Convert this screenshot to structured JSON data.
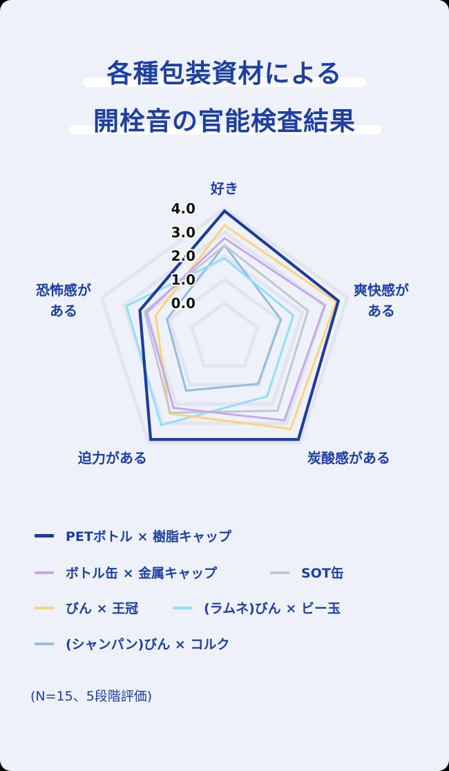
{
  "title": {
    "line1": "各種包装資材による",
    "line2": "開栓音の官能検査結果"
  },
  "chart_data": {
    "type": "radar",
    "title": "各種包装資材による開栓音の官能検査結果",
    "axes": [
      "好き",
      "爽快感がある",
      "炭酸感がある",
      "迫力がある",
      "恐怖感がある"
    ],
    "axis_labels_display": {
      "top": "好き",
      "right_line1": "爽快感が",
      "right_line2": "ある",
      "bottom_right": "炭酸感がある",
      "bottom_left": "迫力がある",
      "left_line1": "恐怖感が",
      "left_line2": "ある"
    },
    "radial_ticks": [
      "0.0",
      "1.0",
      "2.0",
      "3.0",
      "4.0"
    ],
    "range": [
      0,
      4
    ],
    "grid": true,
    "legend_position": "bottom",
    "series": [
      {
        "name": "PETボトル × 樹脂キャップ",
        "color": "#1c3c9e",
        "width": 4,
        "values": [
          3.9,
          3.6,
          3.85,
          3.85,
          2.3
        ]
      },
      {
        "name": "ボトル缶 × 金属キャップ",
        "color": "#c4a8ec",
        "width": 3,
        "values": [
          2.75,
          3.0,
          2.85,
          2.2,
          2.0
        ]
      },
      {
        "name": "SOT缶",
        "color": "#c2c7d0",
        "width": 3,
        "values": [
          2.45,
          2.25,
          2.35,
          2.45,
          2.1
        ]
      },
      {
        "name": "びん × 王冠",
        "color": "#ffd27a",
        "width": 3,
        "values": [
          3.3,
          3.5,
          3.3,
          2.5,
          1.6
        ]
      },
      {
        "name": "(ラムネ)びん × ビー玉",
        "color": "#8ee0fb",
        "width": 3,
        "values": [
          1.9,
          1.6,
          1.6,
          3.1,
          2.9
        ]
      },
      {
        "name": "(シャンパン)びん × コルク",
        "color": "#93bde0",
        "width": 3,
        "values": [
          2.45,
          1.05,
          0.95,
          1.3,
          1.1
        ]
      }
    ]
  },
  "note": "(N=15、5段階評価)"
}
